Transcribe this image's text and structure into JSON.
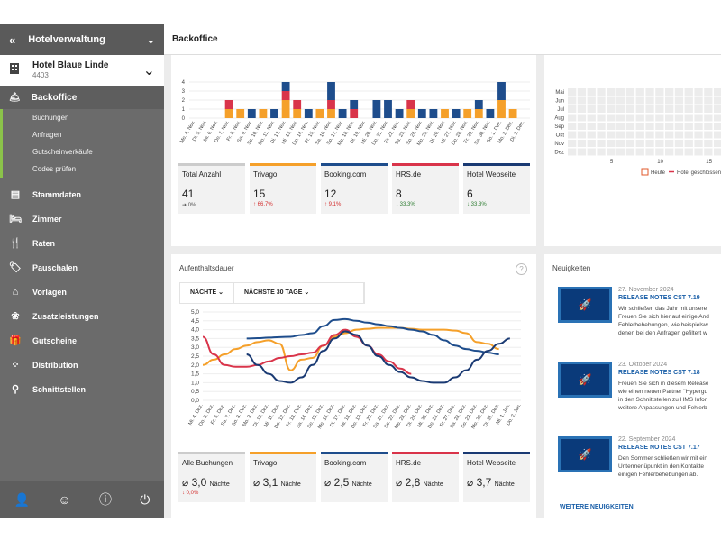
{
  "sidebar": {
    "app_title": "Hotelverwaltung",
    "hotel_name": "Hotel Blaue Linde",
    "hotel_id": "4403",
    "active": "Backoffice",
    "sub_items": [
      "Buchungen",
      "Anfragen",
      "Gutscheinverkäufe",
      "Codes prüfen"
    ],
    "items": [
      "Stammdaten",
      "Zimmer",
      "Raten",
      "Pauschalen",
      "Vorlagen",
      "Zusatzleistungen",
      "Gutscheine",
      "Distribution",
      "Schnittstellen"
    ]
  },
  "header": {
    "title": "Backoffice"
  },
  "bookings": {
    "tiles": [
      {
        "label": "Total Anzahl",
        "value": "41",
        "delta": "0%",
        "trend": "flat",
        "color": "#cccccc"
      },
      {
        "label": "Trivago",
        "value": "15",
        "delta": "66,7%",
        "trend": "up",
        "color": "#f5a02a"
      },
      {
        "label": "Booking.com",
        "value": "12",
        "delta": "9,1%",
        "trend": "up",
        "color": "#1e4d8c"
      },
      {
        "label": "HRS.de",
        "value": "8",
        "delta": "33,3%",
        "trend": "down",
        "color": "#d9344a"
      },
      {
        "label": "Hotel Webseite",
        "value": "6",
        "delta": "33,3%",
        "trend": "down",
        "color": "#1a3a73"
      }
    ]
  },
  "calendar": {
    "months": [
      "Mai",
      "Jun",
      "Jul",
      "Aug",
      "Sep",
      "Okt",
      "Nov",
      "Dez"
    ],
    "x_ticks": [
      "5",
      "10",
      "15"
    ],
    "legend_today": "Heute",
    "legend_closed": "Hotel geschlossen"
  },
  "stay": {
    "title": "Aufenthaltsdauer",
    "help": "?",
    "filter1": "NÄCHTE",
    "filter2": "NÄCHSTE 30 TAGE",
    "tiles": [
      {
        "label": "Alle Buchungen",
        "value": "3,0",
        "unit": "Nächte",
        "delta": "0,0%",
        "color": "#cccccc"
      },
      {
        "label": "Trivago",
        "value": "3,1",
        "unit": "Nächte",
        "delta": "",
        "color": "#f5a02a"
      },
      {
        "label": "Booking.com",
        "value": "2,5",
        "unit": "Nächte",
        "delta": "",
        "color": "#1e4d8c"
      },
      {
        "label": "HRS.de",
        "value": "2,8",
        "unit": "Nächte",
        "delta": "",
        "color": "#d9344a"
      },
      {
        "label": "Hotel Webseite",
        "value": "3,7",
        "unit": "Nächte",
        "delta": "",
        "color": "#1a3a73"
      }
    ]
  },
  "news": {
    "title": "Neuigkeiten",
    "items": [
      {
        "date": "27. November 2024",
        "title": "RELEASE NOTES CST 7.19",
        "lines": [
          "Wir schließen das Jahr mit unsere",
          "Freuen Sie sich hier auf einige And",
          "Fehlerbehebungen, wie beispielsw",
          "denen bei den Anfragen gefiltert w"
        ]
      },
      {
        "date": "23. Oktober 2024",
        "title": "RELEASE NOTES CST 7.18",
        "lines": [
          "Freuen Sie sich in diesem Release",
          "wie einen neuen Partner \"Hypergu",
          "in den Schnittstellen zu HMS Infor",
          "weitere Anpassungen und Fehlerb"
        ]
      },
      {
        "date": "22. September 2024",
        "title": "RELEASE NOTES CST 7.17",
        "lines": [
          "Den Sommer schließen wir mit ein",
          "Untermenüpunkt in den Kontakte",
          "einigen Fehlerbehebungen ab."
        ]
      }
    ],
    "more": "WEITERE NEUIGKEITEN"
  },
  "chart_data": [
    {
      "type": "bar",
      "title": "",
      "stacked": true,
      "ylim": [
        0,
        4
      ],
      "yticks": [
        "0",
        "1",
        "2",
        "3",
        "4"
      ],
      "categories": [
        "Mo. 4. Nov.",
        "Di. 5. Nov.",
        "Mi. 6. Nov.",
        "Do. 7. Nov.",
        "Fr. 8. Nov.",
        "Sa. 9. Nov.",
        "So. 10. Nov.",
        "Mo. 11. Nov.",
        "Di. 12. Nov.",
        "Mi. 13. Nov.",
        "Do. 14. Nov.",
        "Fr. 15. Nov.",
        "Sa. 16. Nov.",
        "So. 17. Nov.",
        "Mo. 18. Nov.",
        "Di. 19. Nov.",
        "Mi. 20. Nov.",
        "Do. 21. Nov.",
        "Fr. 22. Nov.",
        "Sa. 23. Nov.",
        "So. 24. Nov.",
        "Mo. 25. Nov.",
        "Di. 26. Nov.",
        "Mi. 27. Nov.",
        "Do. 28. Nov.",
        "Fr. 29. Nov.",
        "Sa. 30. Nov.",
        "So. 1. Dez.",
        "Mo. 2. Dez.",
        "Di. 3. Dez."
      ],
      "series": [
        {
          "name": "Trivago",
          "color": "#f5a02a",
          "values": [
            0,
            0,
            0,
            1,
            1,
            0,
            1,
            0,
            2,
            1,
            0,
            1,
            1,
            0,
            0,
            0,
            0,
            0,
            0,
            1,
            0,
            0,
            1,
            0,
            1,
            1,
            0,
            2,
            1,
            0
          ]
        },
        {
          "name": "HRS.de",
          "color": "#d9344a",
          "values": [
            0,
            0,
            0,
            1,
            0,
            0,
            0,
            0,
            1,
            1,
            0,
            0,
            1,
            0,
            1,
            0,
            0,
            0,
            0,
            1,
            0,
            0,
            0,
            0,
            0,
            0,
            0,
            0,
            0,
            0
          ]
        },
        {
          "name": "Booking.com",
          "color": "#1e4d8c",
          "values": [
            0,
            0,
            0,
            0,
            0,
            1,
            0,
            1,
            1,
            0,
            1,
            0,
            2,
            1,
            1,
            0,
            2,
            2,
            1,
            0,
            1,
            1,
            0,
            1,
            0,
            1,
            1,
            2,
            0,
            0
          ]
        }
      ]
    },
    {
      "type": "line",
      "title": "",
      "ylim": [
        0,
        5
      ],
      "yticks": [
        "0,0",
        "0,5",
        "1,0",
        "1,5",
        "2,0",
        "2,5",
        "3,0",
        "3,5",
        "4,0",
        "4,5",
        "5,0"
      ],
      "x": [
        "Mi. 4. Dez.",
        "Do. 5. Dez.",
        "Fr. 6. Dez.",
        "Sa. 7. Dez.",
        "So. 8. Dez.",
        "Mo. 9. Dez.",
        "Di. 10. Dez.",
        "Mi. 11. Dez.",
        "Do. 12. Dez.",
        "Fr. 13. Dez.",
        "Sa. 14. Dez.",
        "So. 15. Dez.",
        "Mo. 16. Dez.",
        "Di. 17. Dez.",
        "Mi. 18. Dez.",
        "Do. 19. Dez.",
        "Fr. 20. Dez.",
        "Sa. 21. Dez.",
        "So. 22. Dez.",
        "Mo. 23. Dez.",
        "Di. 24. Dez.",
        "Mi. 25. Dez.",
        "Do. 26. Dez.",
        "Fr. 27. Dez.",
        "Sa. 28. Dez.",
        "So. 29. Dez.",
        "Mo. 30. Dez.",
        "Di. 31. Dez.",
        "Mi. 1. Jan.",
        "Do. 2. Jan."
      ],
      "series": [
        {
          "name": "Trivago",
          "color": "#f5a02a",
          "values": [
            2.0,
            2.3,
            2.6,
            2.9,
            3.1,
            3.3,
            3.4,
            3.2,
            1.7,
            2.3,
            2.4,
            3.1,
            3.6,
            3.8,
            4.0,
            4.05,
            4.1,
            4.1,
            4.1,
            4.05,
            4.0,
            4.0,
            4.0,
            3.95,
            3.8,
            3.3,
            3.2,
            2.9,
            null,
            null
          ]
        },
        {
          "name": "HRS.de",
          "color": "#d9344a",
          "values": [
            3.6,
            2.6,
            2.0,
            1.9,
            1.9,
            2.0,
            2.2,
            2.4,
            2.5,
            2.6,
            2.7,
            3.1,
            3.7,
            4.0,
            3.6,
            3.1,
            2.6,
            2.2,
            1.8,
            1.5,
            null,
            null,
            null,
            null,
            null,
            null,
            null,
            null,
            null,
            null
          ]
        },
        {
          "name": "Booking.com",
          "color": "#1e4d8c",
          "values": [
            null,
            null,
            null,
            null,
            3.5,
            3.52,
            3.55,
            3.58,
            3.6,
            3.7,
            3.8,
            4.2,
            4.55,
            4.6,
            4.5,
            4.4,
            4.3,
            4.2,
            4.1,
            4.0,
            3.9,
            3.7,
            3.4,
            3.1,
            2.9,
            2.8,
            2.7,
            2.6,
            null,
            null
          ]
        },
        {
          "name": "Hotel Webseite",
          "color": "#1a3a73",
          "values": [
            null,
            null,
            null,
            null,
            2.6,
            2.0,
            1.5,
            1.1,
            1.0,
            1.3,
            2.0,
            2.8,
            3.5,
            3.9,
            3.7,
            3.1,
            2.5,
            2.0,
            1.6,
            1.3,
            1.1,
            1.0,
            1.0,
            1.3,
            1.7,
            2.3,
            2.8,
            3.2,
            3.5,
            null
          ]
        }
      ]
    },
    {
      "type": "heatmap",
      "title": "",
      "rows": [
        "Mai",
        "Jun",
        "Jul",
        "Aug",
        "Sep",
        "Okt",
        "Nov",
        "Dez"
      ],
      "x_ticks": [
        "5",
        "10",
        "15"
      ]
    }
  ]
}
